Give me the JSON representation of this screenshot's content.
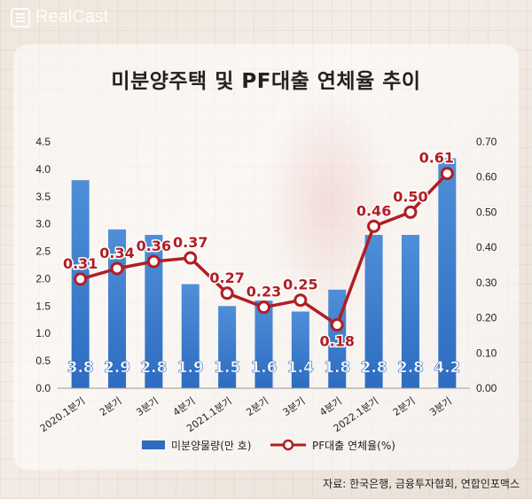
{
  "brand": {
    "logo_text": "RealCast"
  },
  "source_text": "자료: 한국은행, 금융투자협회, 연합인포맥스",
  "colors": {
    "bar": "#4f8fd8",
    "bar_dark": "#2d6cc0",
    "line": "#b01e23",
    "bar_label": "#ffffff"
  },
  "chart_data": {
    "type": "bar",
    "title": "미분양주택 및 PF대출 연체율 추이",
    "categories": [
      "2020.1분기",
      "2분기",
      "3분기",
      "4분기",
      "2021.1분기",
      "2분기",
      "3분기",
      "4분기",
      "2022.1분기",
      "2분기",
      "3분기"
    ],
    "series": [
      {
        "name": "미분양물량(만 호)",
        "type": "bar",
        "axis": "left",
        "values": [
          3.8,
          2.9,
          2.8,
          1.9,
          1.5,
          1.6,
          1.4,
          1.8,
          2.8,
          2.8,
          4.2
        ],
        "labels": [
          "3.8",
          "2.9",
          "2.8",
          "1.9",
          "1.5",
          "1.6",
          "1.4",
          "1.8",
          "2.8",
          "2.8",
          "4.2"
        ]
      },
      {
        "name": "PF대출 연체율(%)",
        "type": "line",
        "axis": "right",
        "values": [
          0.31,
          0.34,
          0.36,
          0.37,
          0.27,
          0.23,
          0.25,
          0.18,
          0.46,
          0.5,
          0.61
        ],
        "labels": [
          "0.31",
          "0.34",
          "0.36",
          "0.37",
          "0.27",
          "0.23",
          "0.25",
          "0.18",
          "0.46",
          "0.50",
          "0.61"
        ]
      }
    ],
    "y_left": {
      "range": [
        0,
        4.5
      ],
      "ticks": [
        "0.0",
        "0.5",
        "1.0",
        "1.5",
        "2.0",
        "2.5",
        "3.0",
        "3.5",
        "4.0",
        "4.5"
      ]
    },
    "y_right": {
      "range": [
        0,
        0.7
      ],
      "ticks": [
        "0.00",
        "0.10",
        "0.20",
        "0.30",
        "0.40",
        "0.50",
        "0.60",
        "0.70"
      ]
    },
    "legend": {
      "placement": "bottom",
      "items": [
        "미분양물량(만 호)",
        "PF대출 연체율(%)"
      ]
    },
    "grid": false
  }
}
